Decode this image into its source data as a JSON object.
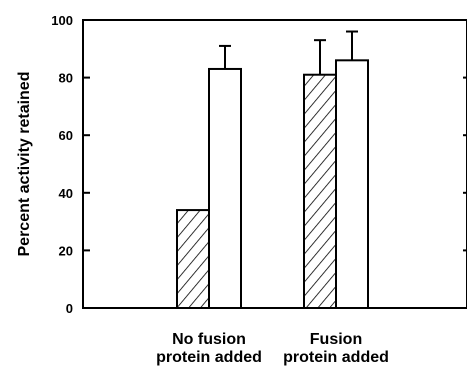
{
  "chart_data": {
    "type": "bar",
    "ylabel": "Percent activity retained",
    "ylim": [
      0,
      100
    ],
    "yticks": [
      0,
      20,
      40,
      60,
      80,
      100
    ],
    "grid": false,
    "categories": [
      [
        "No fusion",
        "protein added"
      ],
      [
        "Fusion",
        "protein added"
      ]
    ],
    "series": [
      {
        "pattern": "hatched",
        "values": [
          34,
          81
        ],
        "errors": [
          null,
          12
        ]
      },
      {
        "pattern": "open",
        "values": [
          83,
          86
        ],
        "errors": [
          8,
          10
        ]
      }
    ]
  }
}
